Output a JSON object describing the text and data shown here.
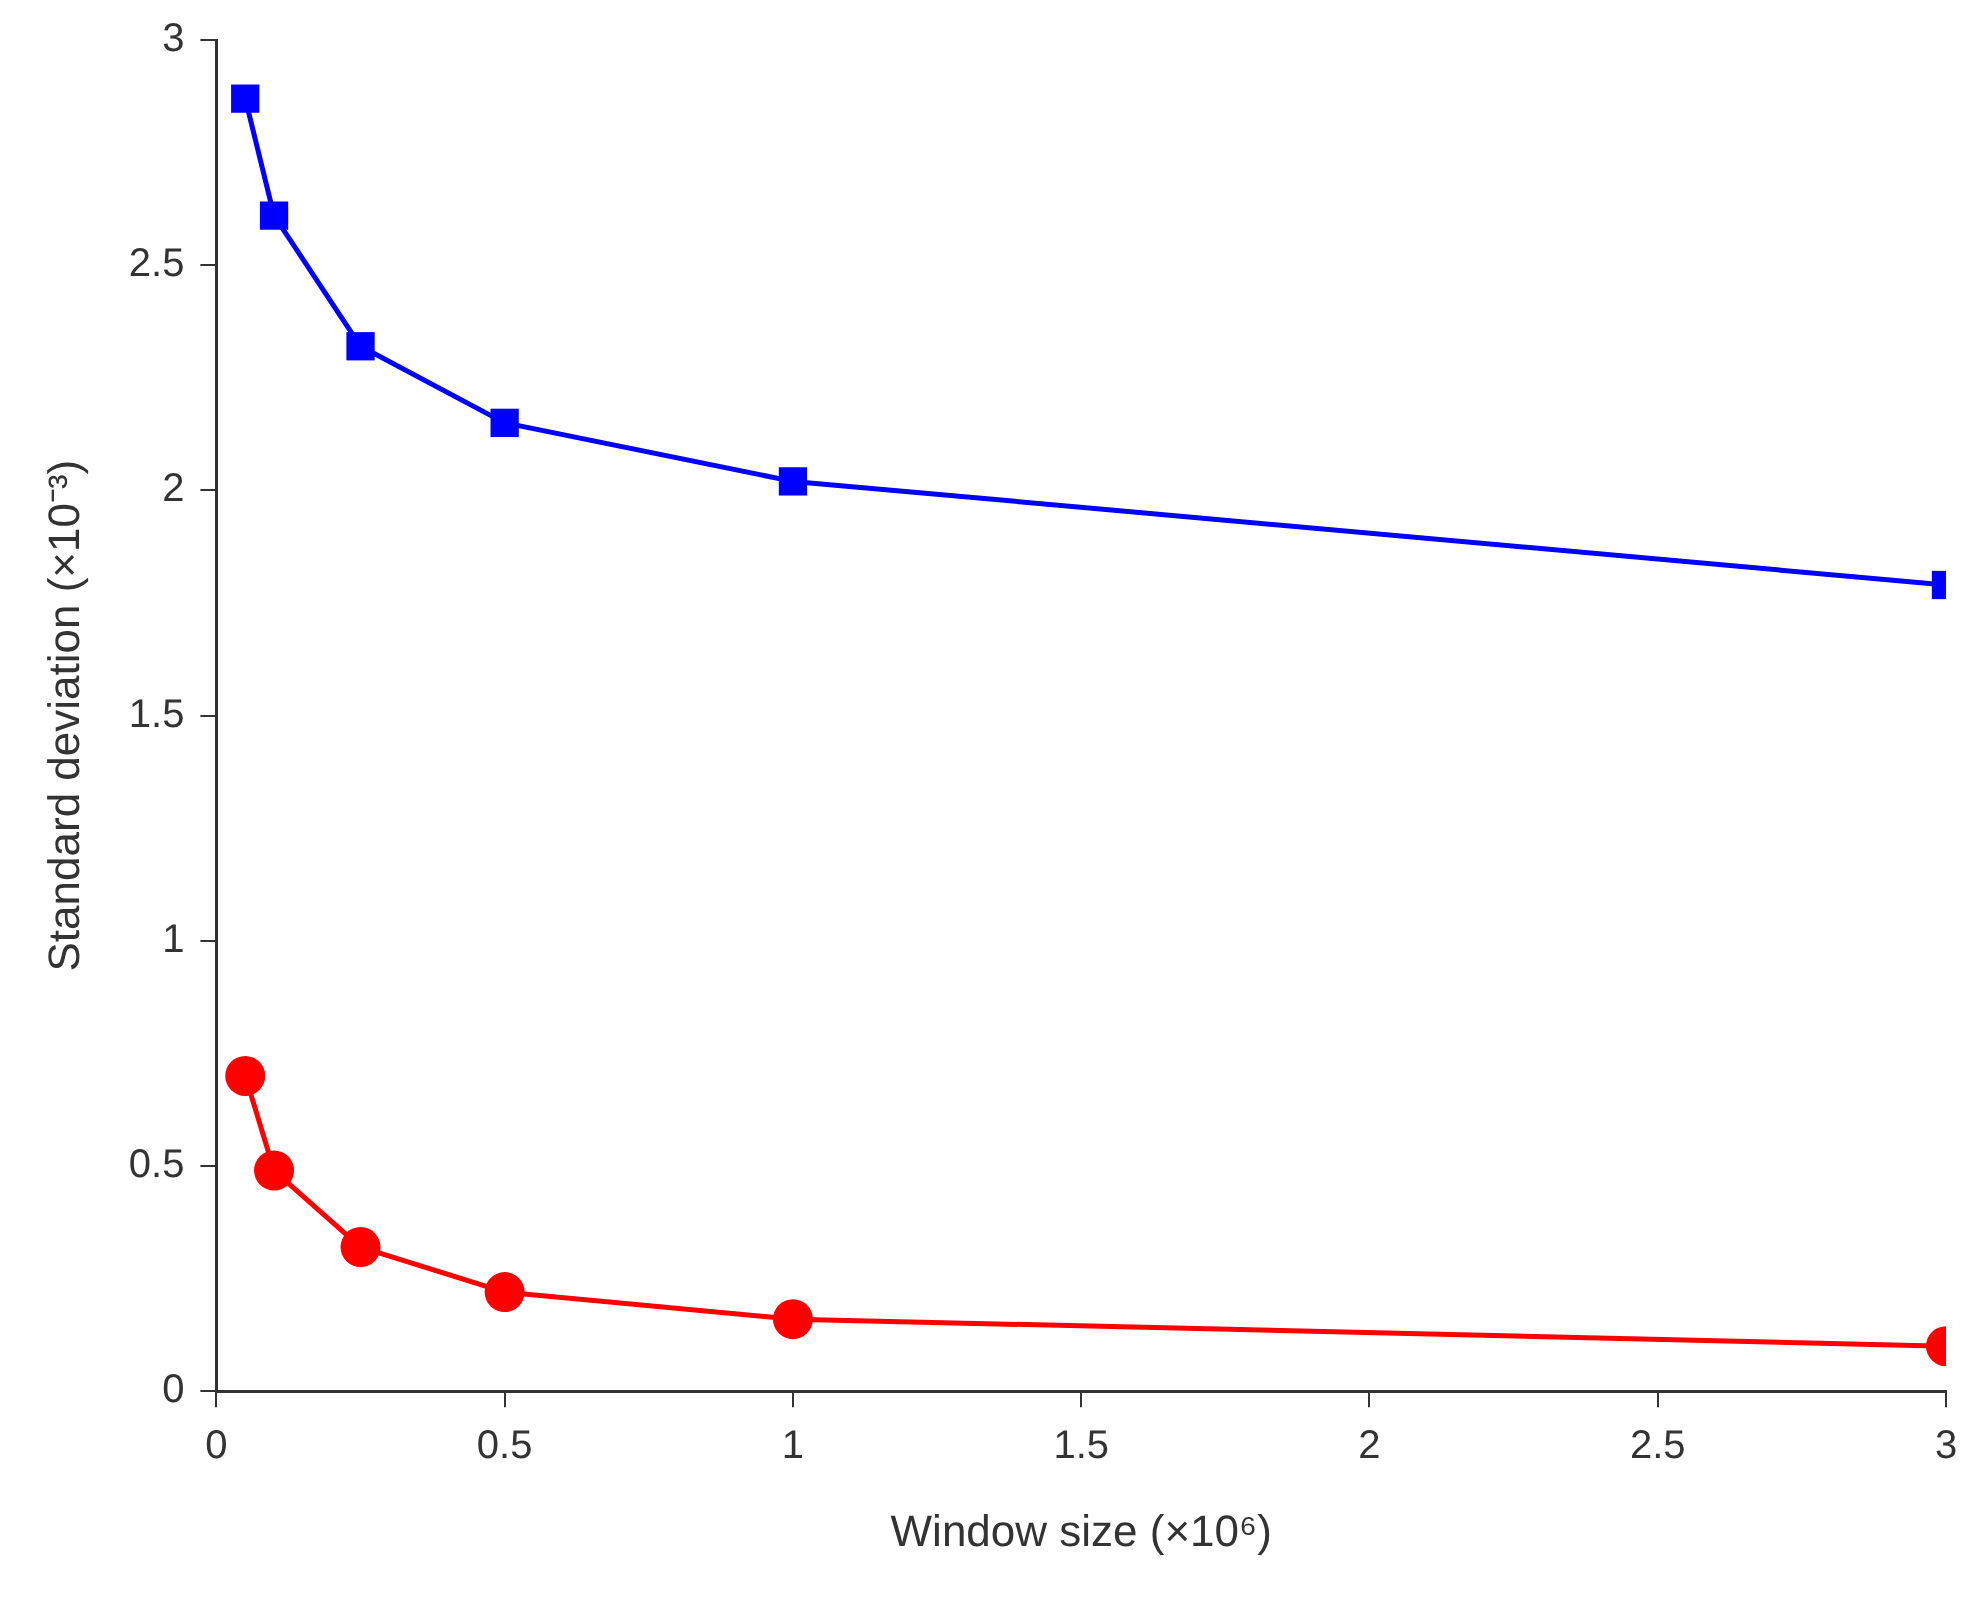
{
  "chart_data": {
    "type": "line",
    "xlabel": "Window size (×10⁶)",
    "ylabel": "Standard deviation (×10⁻³)",
    "x": [
      0.05,
      0.1,
      0.25,
      0.5,
      1,
      3
    ],
    "series": [
      {
        "color": "#0000ff",
        "marker": "square",
        "values": [
          2.87,
          2.61,
          2.32,
          2.15,
          2.02,
          1.79
        ]
      },
      {
        "color": "#ff0000",
        "marker": "circle",
        "values": [
          0.7,
          0.49,
          0.32,
          0.22,
          0.16,
          0.1
        ]
      }
    ],
    "xlim": [
      0,
      3
    ],
    "xticks": [
      0,
      0.5,
      1,
      1.5,
      2,
      2.5,
      3
    ],
    "ylim": [
      0,
      3
    ],
    "yticks": [
      0,
      0.5,
      1,
      1.5,
      2,
      2.5,
      3
    ],
    "grid": false,
    "legend": false
  }
}
